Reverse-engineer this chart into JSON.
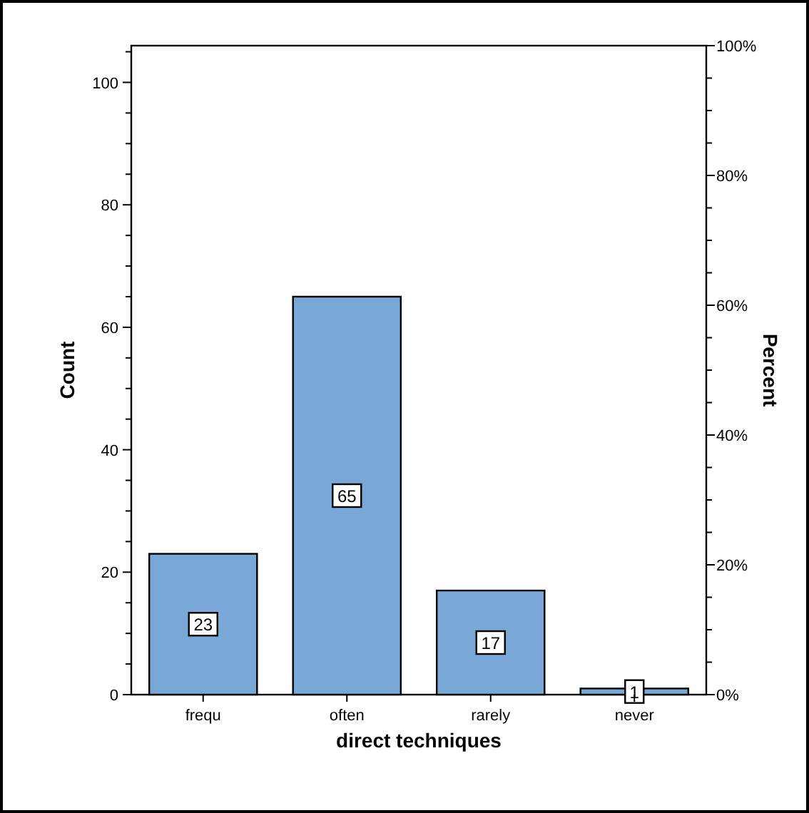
{
  "chart_data": {
    "type": "bar",
    "xlabel": "direct techniques",
    "ylabel": "Count",
    "y2label": "Percent",
    "categories": [
      "frequ",
      "often",
      "rarely",
      "never"
    ],
    "series": [
      {
        "color": "#79a7d6",
        "values": [
          23,
          65,
          17,
          1
        ]
      }
    ],
    "data_labels": true,
    "grid": false,
    "ylim": [
      0,
      106
    ],
    "yticks": [
      0,
      {
        "value": 5,
        "label": null
      },
      {
        "value": 10,
        "label": null
      },
      {
        "value": 15,
        "label": null
      },
      20,
      {
        "value": 25,
        "label": null
      },
      {
        "value": 30,
        "label": null
      },
      {
        "value": 35,
        "label": null
      },
      40,
      {
        "value": 45,
        "label": null
      },
      {
        "value": 50,
        "label": null
      },
      {
        "value": 55,
        "label": null
      },
      60,
      {
        "value": 65,
        "label": null
      },
      {
        "value": 70,
        "label": null
      },
      {
        "value": 75,
        "label": null
      },
      80,
      {
        "value": 85,
        "label": null
      },
      {
        "value": 90,
        "label": null
      },
      {
        "value": 95,
        "label": null
      },
      100,
      {
        "value": 105,
        "label": null
      }
    ],
    "y2lim": [
      0,
      100
    ],
    "y2ticks": [
      {
        "value": 0,
        "label": "0%"
      },
      {
        "value": 5,
        "label": null
      },
      {
        "value": 10,
        "label": null
      },
      {
        "value": 15,
        "label": null
      },
      {
        "value": 20,
        "label": "20%"
      },
      {
        "value": 25,
        "label": null
      },
      {
        "value": 30,
        "label": null
      },
      {
        "value": 35,
        "label": null
      },
      {
        "value": 40,
        "label": "40%"
      },
      {
        "value": 45,
        "label": null
      },
      {
        "value": 50,
        "label": null
      },
      {
        "value": 55,
        "label": null
      },
      {
        "value": 60,
        "label": "60%"
      },
      {
        "value": 65,
        "label": null
      },
      {
        "value": 70,
        "label": null
      },
      {
        "value": 75,
        "label": null
      },
      {
        "value": 80,
        "label": "80%"
      },
      {
        "value": 85,
        "label": null
      },
      {
        "value": 90,
        "label": null
      },
      {
        "value": 95,
        "label": null
      },
      {
        "value": 100,
        "label": "100%"
      }
    ]
  }
}
